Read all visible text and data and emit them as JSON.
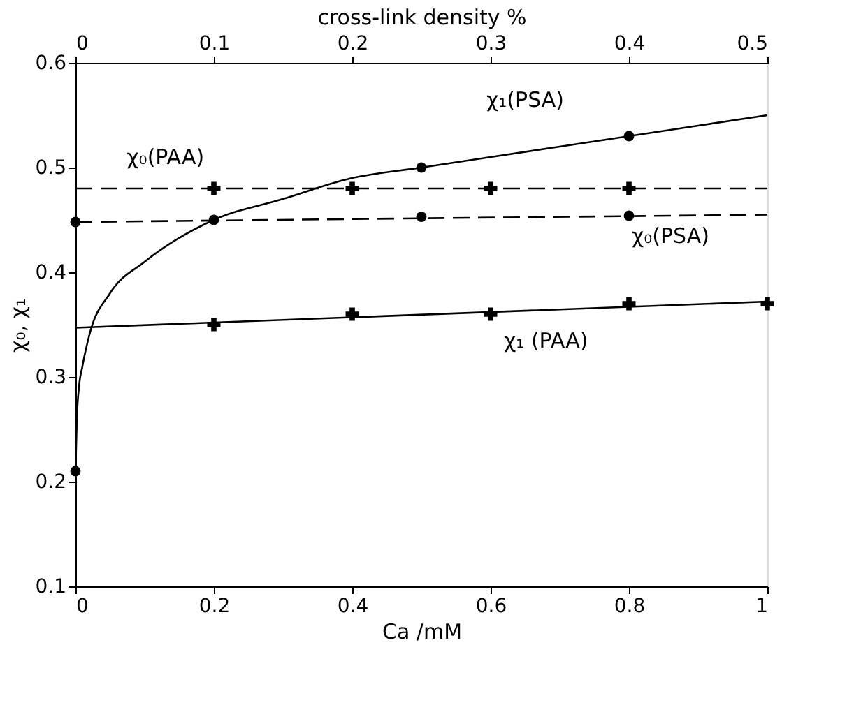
{
  "chart_data": {
    "type": "scatter",
    "xlabel": "Ca /mM",
    "ylabel": "χ₀, χ₁",
    "x2label": "cross-link density %",
    "xlim": [
      0,
      1
    ],
    "xticks": [
      0,
      0.2,
      0.4,
      0.6,
      0.8,
      1
    ],
    "ylim": [
      0.1,
      0.6
    ],
    "yticks": [
      0.1,
      0.2,
      0.3,
      0.4,
      0.5,
      0.6
    ],
    "x2lim": [
      0,
      0.5
    ],
    "x2ticks": [
      0,
      0.1,
      0.2,
      0.3,
      0.4,
      0.5
    ],
    "grid": false,
    "series": [
      {
        "type": "line",
        "color": "#000000",
        "line_style": "solid",
        "x": [
          0,
          0.002,
          0.005,
          0.01,
          0.02,
          0.05,
          0.1,
          0.2,
          0.3,
          0.4,
          0.5,
          0.6,
          0.7,
          0.8,
          0.9,
          1.0
        ],
        "values": [
          0.21,
          0.26,
          0.29,
          0.31,
          0.34,
          0.38,
          0.41,
          0.45,
          0.47,
          0.49,
          0.5,
          0.51,
          0.52,
          0.53,
          0.54,
          0.55
        ]
      },
      {
        "color": "#000000",
        "marker": "circle",
        "x": [
          0,
          0.2,
          0.5,
          0.8
        ],
        "values": [
          0.21,
          0.45,
          0.5,
          0.53
        ]
      },
      {
        "type": "line",
        "color": "#000000",
        "line_style": "solid",
        "x": [
          0,
          1
        ],
        "values": [
          0.347,
          0.372
        ]
      },
      {
        "color": "#000000",
        "marker": "cross",
        "x": [
          0.2,
          0.4,
          0.6,
          0.8,
          1
        ],
        "values": [
          0.35,
          0.36,
          0.36,
          0.37,
          0.37
        ]
      },
      {
        "type": "line",
        "color": "#000000",
        "line_style": "dashed",
        "x": [
          0,
          1
        ],
        "values": [
          0.48,
          0.48
        ]
      },
      {
        "color": "#000000",
        "marker": "cross",
        "x": [
          0.2,
          0.4,
          0.6,
          0.8
        ],
        "values": [
          0.48,
          0.48,
          0.48,
          0.48
        ]
      },
      {
        "type": "line",
        "color": "#000000",
        "line_style": "dashed",
        "x": [
          0,
          1
        ],
        "values": [
          0.448,
          0.455
        ]
      },
      {
        "color": "#000000",
        "marker": "circle",
        "x": [
          0,
          0.5,
          0.8
        ],
        "values": [
          0.448,
          0.453,
          0.454
        ]
      }
    ],
    "annotations": [
      "χ₁(PSA)",
      "χ₀(PAA)",
      "χ₀(PSA)",
      "χ₁ (PAA)"
    ]
  }
}
